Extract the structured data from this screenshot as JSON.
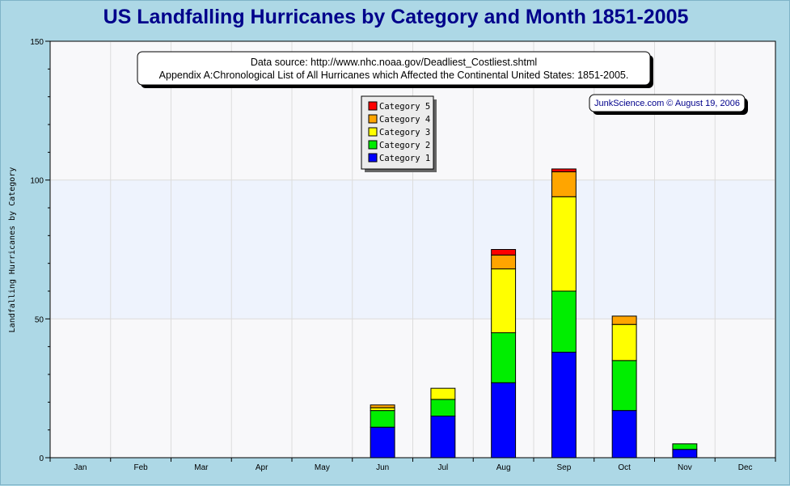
{
  "colors": {
    "background": "#add8e6",
    "plot_background": "#f8f8fa",
    "band_background": "#eef3fd",
    "title": "#00008b",
    "category_1": "#0000ff",
    "category_2": "#00ee00",
    "category_3": "#ffff00",
    "category_4": "#ffa500",
    "category_5": "#ff0000"
  },
  "source_note": {
    "line1": "Data source: http://www.nhc.noaa.gov/Deadliest_Costliest.shtml",
    "line2": "Appendix A:Chronological List of All Hurricanes which Affected the Continental United States: 1851-2005."
  },
  "credit": "JunkScience.com © August 19, 2006",
  "chart_data": {
    "type": "bar",
    "stacked": true,
    "title": "US Landfalling Hurricanes by Category and Month 1851-2005",
    "xlabel": "",
    "ylabel": "Landfalling Hurricanes by Category",
    "ylim": [
      0,
      150
    ],
    "yticks": [
      0,
      50,
      100,
      150
    ],
    "grid": true,
    "legend_position": "top-center",
    "categories": [
      "Jan",
      "Feb",
      "Mar",
      "Apr",
      "May",
      "Jun",
      "Jul",
      "Aug",
      "Sep",
      "Oct",
      "Nov",
      "Dec"
    ],
    "series": [
      {
        "name": "Category 1",
        "color": "#0000ff",
        "values": [
          0,
          0,
          0,
          0,
          0,
          11,
          15,
          27,
          38,
          17,
          3,
          0
        ]
      },
      {
        "name": "Category 2",
        "color": "#00ee00",
        "values": [
          0,
          0,
          0,
          0,
          0,
          6,
          6,
          18,
          22,
          18,
          2,
          0
        ]
      },
      {
        "name": "Category 3",
        "color": "#ffff00",
        "values": [
          0,
          0,
          0,
          0,
          0,
          1,
          4,
          23,
          34,
          13,
          0,
          0
        ]
      },
      {
        "name": "Category 4",
        "color": "#ffa500",
        "values": [
          0,
          0,
          0,
          0,
          0,
          1,
          0,
          5,
          9,
          3,
          0,
          0
        ]
      },
      {
        "name": "Category 5",
        "color": "#ff0000",
        "values": [
          0,
          0,
          0,
          0,
          0,
          0,
          0,
          2,
          1,
          0,
          0,
          0
        ]
      }
    ]
  }
}
